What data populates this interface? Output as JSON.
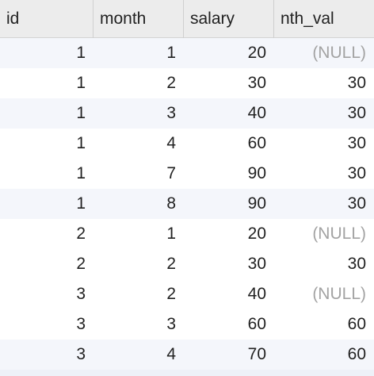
{
  "table": {
    "columns": [
      "id",
      "month",
      "salary",
      "nth_val"
    ],
    "rows": [
      [
        "1",
        "1",
        "20",
        "(NULL)"
      ],
      [
        "1",
        "2",
        "30",
        "30"
      ],
      [
        "1",
        "3",
        "40",
        "30"
      ],
      [
        "1",
        "4",
        "60",
        "30"
      ],
      [
        "1",
        "7",
        "90",
        "30"
      ],
      [
        "1",
        "8",
        "90",
        "30"
      ],
      [
        "2",
        "1",
        "20",
        "(NULL)"
      ],
      [
        "2",
        "2",
        "30",
        "30"
      ],
      [
        "3",
        "2",
        "40",
        "(NULL)"
      ],
      [
        "3",
        "3",
        "60",
        "60"
      ],
      [
        "3",
        "4",
        "70",
        "60"
      ]
    ]
  },
  "colors": {
    "header_bg": "#ececec",
    "alt_row_bg": "#f4f6fb",
    "null_text": "#a3a3a3"
  }
}
